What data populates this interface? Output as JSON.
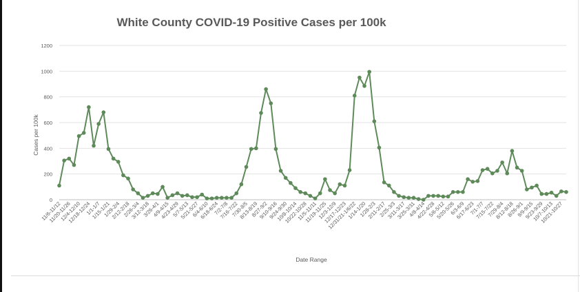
{
  "chart_data": {
    "type": "line",
    "title": "White County COVID-19 Positive Cases per 100k",
    "xlabel": "Date Range",
    "ylabel": "Cases per 100k",
    "ylim": [
      0,
      1200
    ],
    "yticks": [
      0,
      200,
      400,
      600,
      800,
      1000,
      1200
    ],
    "grid": true,
    "legend": "none",
    "color": "#5e8a5a",
    "x_tick_labels": [
      "11/6-11/12",
      "11/20-11/26",
      "12/4-12/10",
      "12/18-12/24",
      "1/1-1/7",
      "1/15-1/21",
      "1/29-2/4",
      "2/12-2/18",
      "2/26-3/4",
      "3/12-3/18",
      "3/26-4/1",
      "4/9-4/15",
      "4/23-4/29",
      "5/7-5/13",
      "5/21-5/27",
      "6/4-6/10",
      "6/18-6/24",
      "7/2-7/8",
      "7/16-7/22",
      "7/30-8/5",
      "8/13-8/19",
      "8/27-9/2",
      "9/10-9/16",
      "9/24-9/30",
      "10/8-10/14",
      "10/22-10/28",
      "11/5-11/11",
      "11/19-11/25",
      "12/3-12/9",
      "12/17-12/23",
      "12/31/21-1/6/22",
      "1/14-1/20",
      "1/28-2/3",
      "2/11-2/17",
      "2/25-3/3",
      "3/11-3/17",
      "3/25-3/31",
      "4/8-4/14",
      "4/22-4/28",
      "5/6-5/12",
      "5/20-5/26",
      "6/3-6/9",
      "6/17-6/23",
      "7/1-7/7",
      "7/15-7/22",
      "7/29-8/4",
      "8/12-8/18",
      "8/26-9/1",
      "9/9-9/15",
      "9/23-9/29",
      "10/7-10/13",
      "10/21-10/27"
    ],
    "values": [
      110,
      305,
      320,
      270,
      495,
      520,
      720,
      420,
      590,
      680,
      395,
      320,
      295,
      190,
      165,
      80,
      50,
      15,
      30,
      50,
      45,
      100,
      15,
      35,
      50,
      30,
      35,
      20,
      20,
      40,
      10,
      10,
      15,
      15,
      15,
      15,
      50,
      120,
      255,
      395,
      400,
      675,
      860,
      750,
      395,
      225,
      170,
      130,
      90,
      60,
      50,
      30,
      10,
      50,
      160,
      75,
      50,
      120,
      110,
      230,
      810,
      950,
      885,
      995,
      610,
      405,
      135,
      110,
      60,
      30,
      20,
      15,
      15,
      5,
      0,
      30,
      30,
      30,
      25,
      25,
      60,
      60,
      60,
      160,
      140,
      145,
      230,
      240,
      205,
      225,
      290,
      205,
      380,
      250,
      225,
      80,
      95,
      110,
      45,
      45,
      55,
      30,
      65,
      60
    ]
  }
}
